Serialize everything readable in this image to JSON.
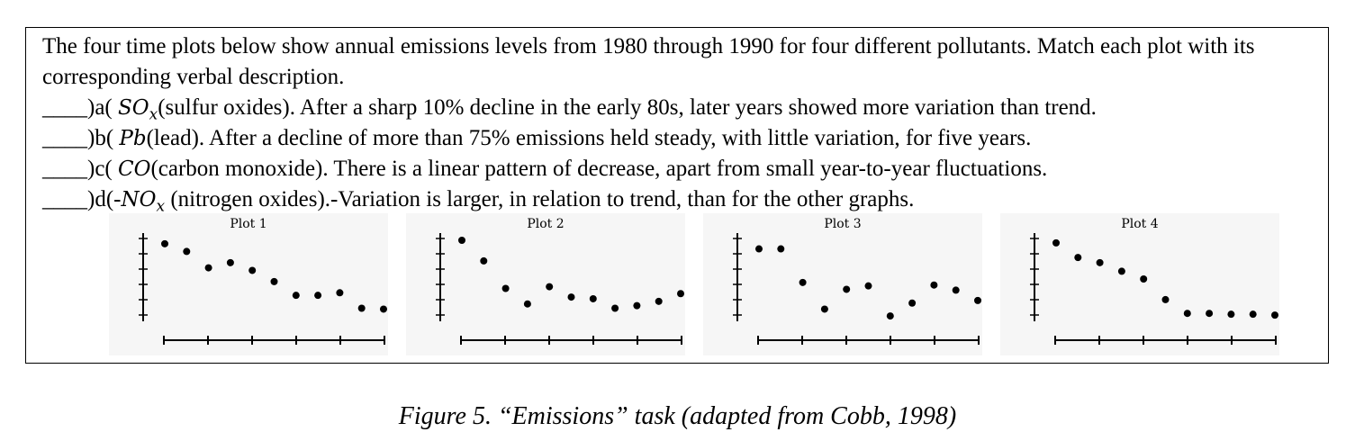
{
  "task": {
    "intro": "The four time plots below show annual emissions levels from 1980 through 1990 for four different pollutants. Match each plot with its corresponding verbal description.",
    "items": [
      {
        "prefix": "____)a( ",
        "math": "SO",
        "sub": "x",
        "text": "(sulfur oxides). After a sharp 10% decline in the early 80s, later years showed more variation than trend."
      },
      {
        "prefix": "____)b( ",
        "math": "Pb",
        "sub": "",
        "text": "(lead). After a decline of more than 75% emissions held steady, with little variation, for five years."
      },
      {
        "prefix": "____)c( ",
        "math": "CO",
        "sub": "",
        "text": "(carbon monoxide). There is a linear pattern of decrease, apart from small year-to-year fluctuations."
      },
      {
        "prefix": "____)d(-",
        "math": "NO",
        "sub": "x",
        "text": " (nitrogen oxides).-Variation is larger, in relation to trend, than for the other graphs."
      }
    ]
  },
  "chart_data": [
    {
      "type": "scatter",
      "title": "Plot 1",
      "x": [
        1980,
        1981,
        1982,
        1983,
        1984,
        1985,
        1986,
        1987,
        1988,
        1989,
        1990
      ],
      "y": [
        9.6,
        8.7,
        6.8,
        7.4,
        6.5,
        5.2,
        3.6,
        3.6,
        3.9,
        2.1,
        2.0
      ]
    },
    {
      "type": "scatter",
      "title": "Plot 2",
      "x": [
        1980,
        1981,
        1982,
        1983,
        1984,
        1985,
        1986,
        1987,
        1988,
        1989,
        1990
      ],
      "y": [
        10.0,
        7.6,
        4.4,
        2.6,
        4.6,
        3.4,
        3.2,
        2.1,
        2.4,
        2.9,
        3.8
      ]
    },
    {
      "type": "scatter",
      "title": "Plot 3",
      "x": [
        1980,
        1981,
        1982,
        1983,
        1984,
        1985,
        1986,
        1987,
        1988,
        1989,
        1990
      ],
      "y": [
        9.0,
        9.0,
        5.1,
        2.0,
        4.3,
        4.7,
        1.2,
        2.7,
        4.8,
        4.2,
        3.0
      ]
    },
    {
      "type": "scatter",
      "title": "Plot 4",
      "x": [
        1980,
        1981,
        1982,
        1983,
        1984,
        1985,
        1986,
        1987,
        1988,
        1989,
        1990
      ],
      "y": [
        9.7,
        8.0,
        7.4,
        6.4,
        5.5,
        3.1,
        1.5,
        1.5,
        1.4,
        1.4,
        1.3
      ]
    }
  ],
  "caption": "Figure 5. “Emissions” task (adapted from Cobb, 1998)"
}
